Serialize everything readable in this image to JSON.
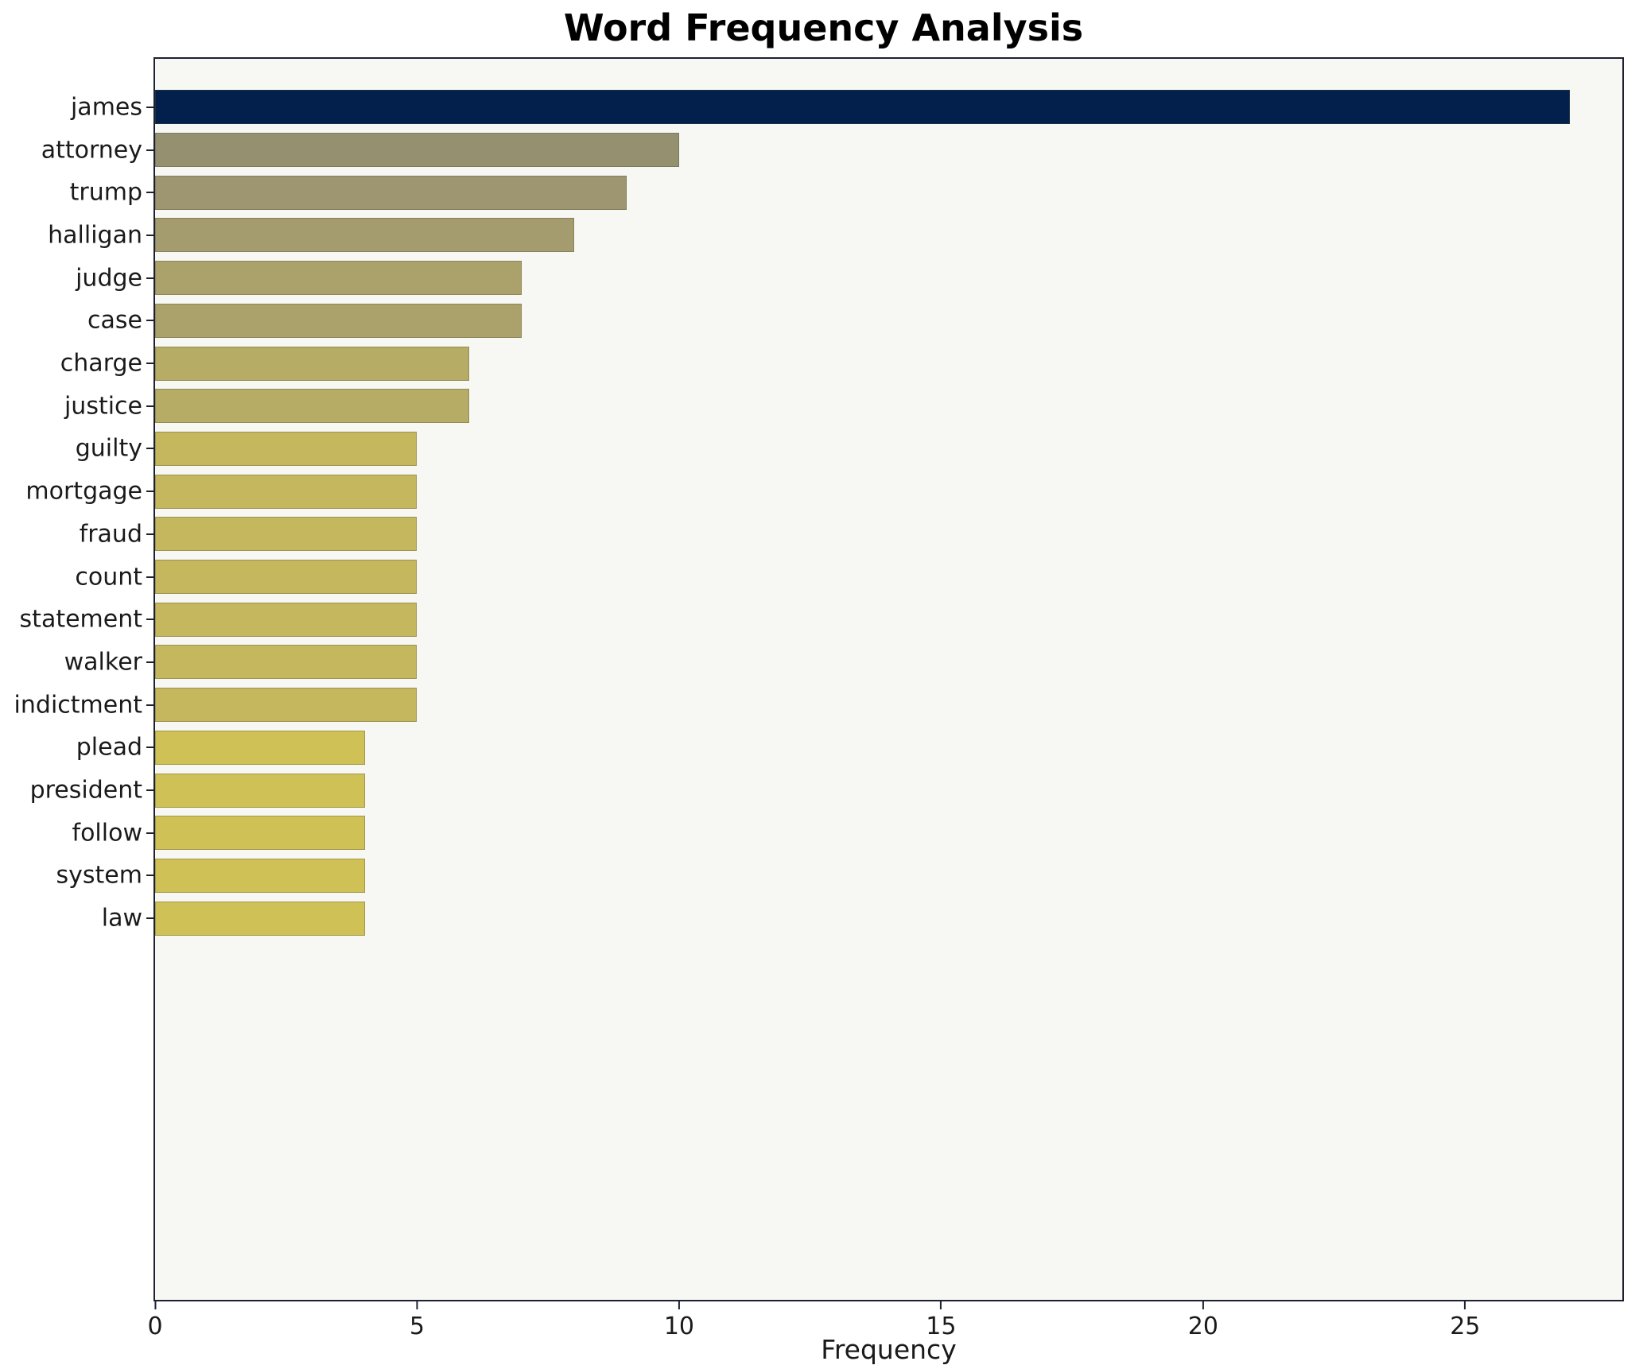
{
  "figure": {
    "title": "Word Frequency Analysis",
    "xlabel": "Frequency",
    "plot_background": "#f7f7f4",
    "spine_color": "#1c2030",
    "figure_background": "#ffffff"
  },
  "chart_data": {
    "type": "bar",
    "orientation": "horizontal",
    "title": "Word Frequency Analysis",
    "xlabel": "Frequency",
    "ylabel": "",
    "xlim": [
      0,
      28
    ],
    "xticks": [
      0,
      5,
      10,
      15,
      20,
      25
    ],
    "grid": false,
    "legend": false,
    "categories": [
      "james",
      "attorney",
      "trump",
      "halligan",
      "judge",
      "case",
      "charge",
      "justice",
      "guilty",
      "mortgage",
      "fraud",
      "count",
      "statement",
      "walker",
      "indictment",
      "plead",
      "president",
      "follow",
      "system",
      "law"
    ],
    "values": [
      27,
      10,
      9,
      8,
      7,
      7,
      6,
      6,
      5,
      5,
      5,
      5,
      5,
      5,
      5,
      4,
      4,
      4,
      4,
      4
    ],
    "bar_colors": [
      "#03204d",
      "#959070",
      "#9d9670",
      "#a49c6e",
      "#aba26b",
      "#aba26b",
      "#b6ac66",
      "#b6ac66",
      "#c4b75e",
      "#c4b75e",
      "#c4b75e",
      "#c4b75e",
      "#c4b75e",
      "#c4b75e",
      "#c4b75e",
      "#cfc156",
      "#cfc156",
      "#cfc156",
      "#cfc156",
      "#cfc156"
    ]
  }
}
